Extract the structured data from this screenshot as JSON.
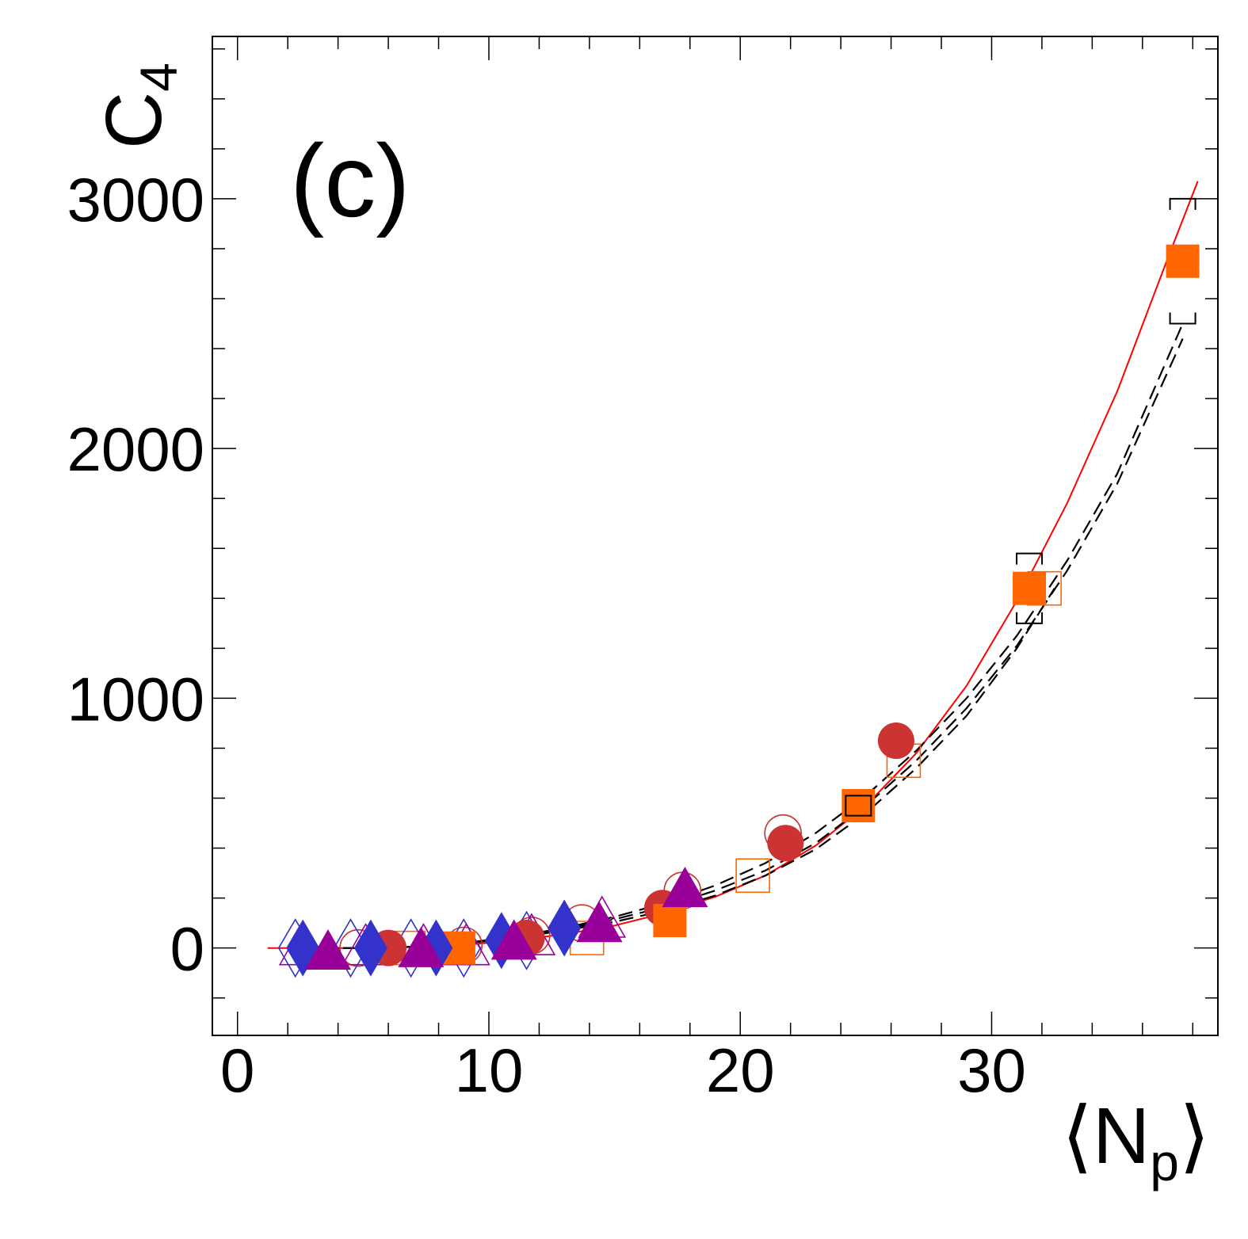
{
  "chart_data": {
    "type": "scatter",
    "title": "",
    "panel_label": "(c)",
    "xlabel": {
      "base": "⟨N",
      "sub": "p",
      "close": "⟩"
    },
    "ylabel": {
      "base": "C",
      "sub": "4"
    },
    "xlim": [
      -1,
      39
    ],
    "ylim": [
      -350,
      3650
    ],
    "x_ticks": [
      0,
      10,
      20,
      30
    ],
    "x_tick_labels": [
      "0",
      "10",
      "20",
      "30"
    ],
    "y_ticks": [
      0,
      1000,
      2000,
      3000
    ],
    "y_tick_labels": [
      "0",
      "1000",
      "2000",
      "3000"
    ],
    "grid": false,
    "legend": "none",
    "colors": {
      "red": "#cc3333",
      "orange": "#ff6600",
      "blue": "#3333cc",
      "purple": "#990099",
      "fit": "#ff0000",
      "model": "#000000"
    },
    "series": [
      {
        "name": "filled-circles",
        "marker": "circle",
        "filled": true,
        "color": "#cc3333",
        "x": [
          6.0,
          11.5,
          16.9,
          21.8,
          26.2
        ],
        "y": [
          0,
          40,
          160,
          420,
          830
        ]
      },
      {
        "name": "open-circles",
        "marker": "circle",
        "filled": false,
        "color": "#cc3333",
        "x": [
          4.8,
          9.0,
          11.7,
          13.7,
          17.7,
          21.7
        ],
        "y": [
          0,
          10,
          50,
          100,
          230,
          460
        ]
      },
      {
        "name": "filled-squares",
        "marker": "square",
        "filled": true,
        "color": "#ff6600",
        "x": [
          8.8,
          17.2,
          24.7,
          31.5,
          37.6
        ],
        "y": [
          0,
          110,
          570,
          1440,
          2750
        ]
      },
      {
        "name": "open-squares",
        "marker": "square",
        "filled": false,
        "color": "#ff6600",
        "x": [
          6.8,
          13.9,
          20.5,
          26.5,
          32.1
        ],
        "y": [
          0,
          40,
          290,
          750,
          1440
        ]
      },
      {
        "name": "filled-diamonds",
        "marker": "diamond",
        "filled": true,
        "color": "#3333cc",
        "x": [
          2.6,
          5.3,
          7.9,
          10.5,
          13.0
        ],
        "y": [
          0,
          0,
          0,
          30,
          80
        ]
      },
      {
        "name": "open-diamonds",
        "marker": "diamond",
        "filled": false,
        "color": "#3333cc",
        "x": [
          2.3,
          4.5,
          6.9,
          9.0,
          11.5
        ],
        "y": [
          0,
          0,
          0,
          0,
          30
        ]
      },
      {
        "name": "filled-triangles",
        "marker": "triangle",
        "filled": true,
        "color": "#990099",
        "x": [
          3.6,
          7.3,
          11.0,
          14.4,
          17.8
        ],
        "y": [
          -20,
          -10,
          20,
          90,
          230
        ]
      },
      {
        "name": "open-triangles",
        "marker": "triangle",
        "filled": false,
        "color": "#990099",
        "x": [
          2.6,
          5.1,
          7.4,
          9.1,
          11.7,
          14.5
        ],
        "y": [
          0,
          0,
          0,
          0,
          40,
          110
        ]
      }
    ],
    "systematic_brackets": [
      {
        "x": 24.7,
        "y_low": 530,
        "y_high": 610
      },
      {
        "x": 31.5,
        "y_low": 1300,
        "y_high": 1580
      },
      {
        "x": 37.6,
        "y_low": 2500,
        "y_high": 3000
      }
    ],
    "curves": [
      {
        "name": "red-fit",
        "style": "solid",
        "color": "#ff0000",
        "x": [
          1.2,
          3,
          5,
          7,
          9,
          11,
          13,
          15,
          17,
          19,
          21,
          23,
          25,
          27,
          29,
          31,
          33,
          35,
          37,
          38.2
        ],
        "y": [
          0,
          0,
          0,
          5,
          12,
          30,
          55,
          90,
          140,
          205,
          290,
          410,
          570,
          780,
          1050,
          1390,
          1780,
          2230,
          2760,
          3070
        ]
      },
      {
        "name": "model-dashed-1",
        "style": "dashed",
        "color": "#000000",
        "x": [
          2.5,
          5,
          7,
          9,
          11,
          13,
          15,
          17,
          19,
          21,
          23,
          25,
          27,
          29,
          31,
          33,
          35,
          37.6
        ],
        "y": [
          0,
          0,
          5,
          20,
          45,
          80,
          125,
          180,
          250,
          340,
          460,
          610,
          790,
          1000,
          1250,
          1550,
          1900,
          2500
        ]
      },
      {
        "name": "model-dashed-2",
        "style": "dashed",
        "color": "#000000",
        "x": [
          2.5,
          5,
          7,
          9,
          11,
          13,
          15,
          17,
          19,
          21,
          23,
          25,
          27,
          29,
          31,
          33,
          35,
          37.6
        ],
        "y": [
          0,
          0,
          5,
          18,
          40,
          75,
          115,
          165,
          230,
          310,
          420,
          570,
          750,
          960,
          1210,
          1510,
          1860,
          2440
        ]
      },
      {
        "name": "model-dashed-3",
        "style": "dashed",
        "color": "#000000",
        "x": [
          2.5,
          5,
          7,
          9,
          11,
          13,
          15,
          17,
          19,
          21,
          23,
          25,
          27,
          29,
          31,
          32.5
        ],
        "y": [
          0,
          0,
          5,
          18,
          40,
          70,
          105,
          150,
          210,
          290,
          395,
          540,
          720,
          930,
          1200,
          1440
        ]
      },
      {
        "name": "model-dashdot",
        "style": "dashdot",
        "color": "#000000",
        "x": [
          2.5,
          4,
          6,
          8,
          10,
          12,
          14,
          15
        ],
        "y": [
          0,
          0,
          0,
          10,
          30,
          60,
          100,
          120
        ]
      }
    ]
  }
}
